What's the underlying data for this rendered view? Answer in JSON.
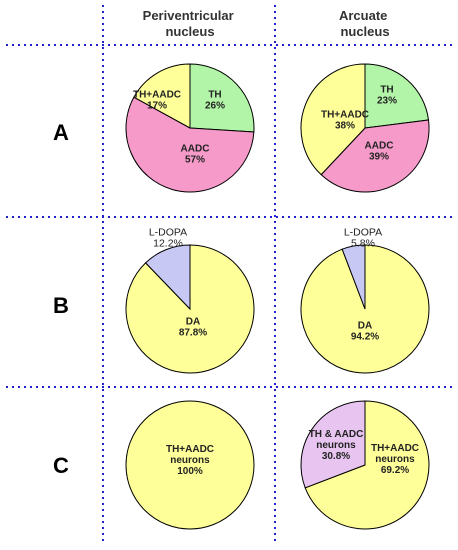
{
  "columns": [
    "Periventricular\nnucleus",
    "Arcuate\nnucleus"
  ],
  "rows": [
    "A",
    "B",
    "C"
  ],
  "colors": {
    "TH": "#b3f5a8",
    "AADC": "#f59ac9",
    "TH+AADC": "#ffff99",
    "L-DOPA": "#c8c8f5",
    "DA": "#ffff99",
    "TH & AADC neurons": "#e8c4f0",
    "TH+AADC neurons": "#ffff99",
    "grid": "#2222cc"
  },
  "chart_data": [
    {
      "type": "pie",
      "row": "A",
      "column": "Periventricular nucleus",
      "slices": [
        {
          "key": "TH",
          "label": [
            "TH",
            "26%"
          ],
          "value": 26
        },
        {
          "key": "AADC",
          "label": [
            "AADC",
            "57%"
          ],
          "value": 57
        },
        {
          "key": "TH+AADC",
          "label": [
            "TH+AADC",
            "17%"
          ],
          "value": 17
        }
      ]
    },
    {
      "type": "pie",
      "row": "A",
      "column": "Arcuate nucleus",
      "slices": [
        {
          "key": "TH",
          "label": [
            "TH",
            "23%"
          ],
          "value": 23
        },
        {
          "key": "AADC",
          "label": [
            "AADC",
            "39%"
          ],
          "value": 39
        },
        {
          "key": "TH+AADC",
          "label": [
            "TH+AADC",
            "38%"
          ],
          "value": 38
        }
      ]
    },
    {
      "type": "pie",
      "row": "B",
      "column": "Periventricular nucleus",
      "slices": [
        {
          "key": "DA",
          "label": [
            "DA",
            "87.8%"
          ],
          "value": 87.8
        },
        {
          "key": "L-DOPA",
          "label": [
            "L-DOPA",
            "12.2%"
          ],
          "value": 12.2
        }
      ]
    },
    {
      "type": "pie",
      "row": "B",
      "column": "Arcuate nucleus",
      "slices": [
        {
          "key": "DA",
          "label": [
            "DA",
            "94.2%"
          ],
          "value": 94.2
        },
        {
          "key": "L-DOPA",
          "label": [
            "L-DOPA",
            "5.8%"
          ],
          "value": 5.8
        }
      ]
    },
    {
      "type": "pie",
      "row": "C",
      "column": "Periventricular nucleus",
      "slices": [
        {
          "key": "TH+AADC neurons",
          "label": [
            "TH+AADC",
            "neurons",
            "100%"
          ],
          "value": 100
        }
      ]
    },
    {
      "type": "pie",
      "row": "C",
      "column": "Arcuate nucleus",
      "slices": [
        {
          "key": "TH+AADC neurons",
          "label": [
            "TH+AADC",
            "neurons",
            "69.2%"
          ],
          "value": 69.2
        },
        {
          "key": "TH & AADC neurons",
          "label": [
            "TH & AADC",
            "neurons",
            "30.8%"
          ],
          "value": 30.8
        }
      ]
    }
  ]
}
